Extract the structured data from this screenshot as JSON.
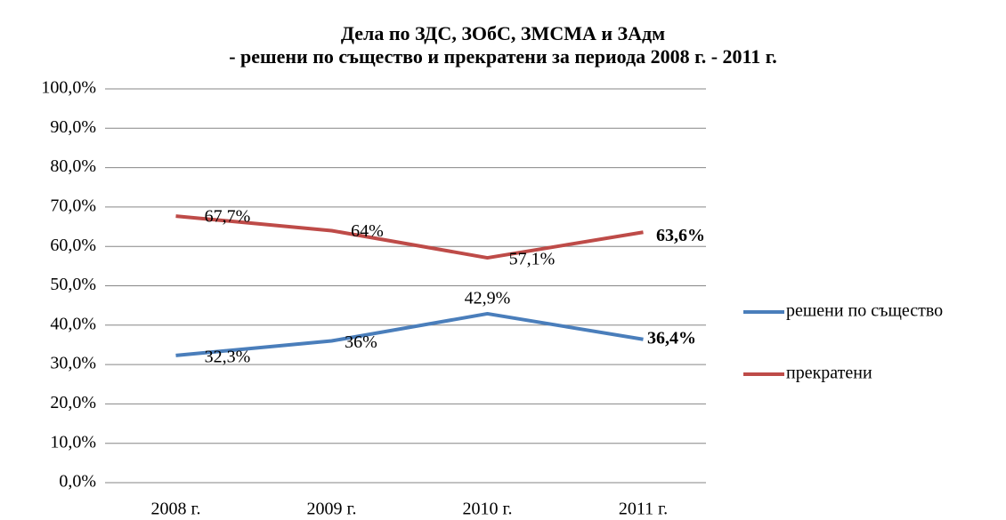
{
  "chart_data": {
    "type": "line",
    "title": "Дела по ЗДС, ЗОбС, ЗМСМА и ЗАдм",
    "subtitle": "- решени по същество и прекратени за периода 2008 г. - 2011 г.",
    "categories": [
      "2008 г.",
      "2009 г.",
      "2010 г.",
      "2011 г."
    ],
    "series": [
      {
        "name": "решени по същество",
        "color": "#4a7ebb",
        "values": [
          32.3,
          36,
          42.9,
          36.4
        ],
        "value_labels": [
          "32,3%",
          "36%",
          "42,9%",
          "36,4%"
        ]
      },
      {
        "name": "прекратени",
        "color": "#be4b48",
        "values": [
          67.7,
          64,
          57.1,
          63.6
        ],
        "value_labels": [
          "67,7%",
          "64%",
          "57,1%",
          "63,6%"
        ]
      }
    ],
    "ylim": [
      0,
      100
    ],
    "yticks": [
      {
        "value": 0,
        "label": "0,0%"
      },
      {
        "value": 10,
        "label": "10,0%"
      },
      {
        "value": 20,
        "label": "20,0%"
      },
      {
        "value": 30,
        "label": "30,0%"
      },
      {
        "value": 40,
        "label": "40,0%"
      },
      {
        "value": 50,
        "label": "50,0%"
      },
      {
        "value": 60,
        "label": "60,0%"
      },
      {
        "value": 70,
        "label": "70,0%"
      },
      {
        "value": 80,
        "label": "80,0%"
      },
      {
        "value": 90,
        "label": "90,0%"
      },
      {
        "value": 100,
        "label": "100,0%"
      }
    ],
    "grid": true,
    "legend": "right"
  }
}
